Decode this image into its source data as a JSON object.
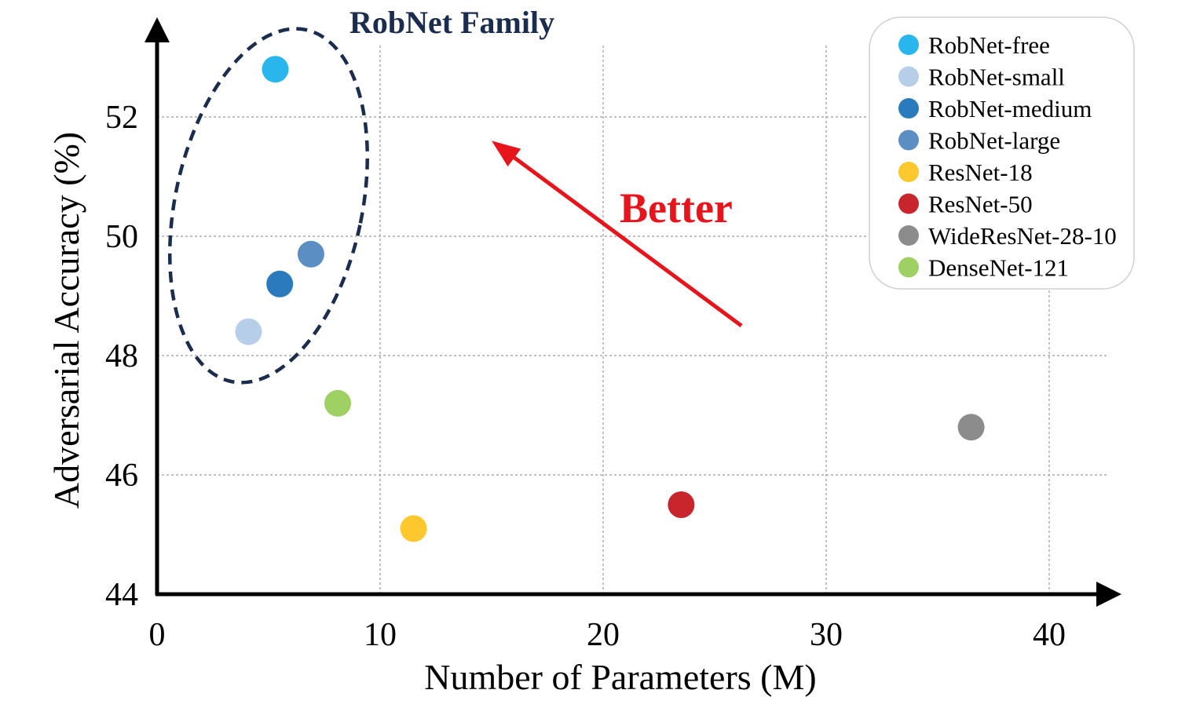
{
  "chart_data": {
    "type": "scatter",
    "xlabel": "Number of Parameters (M)",
    "ylabel": "Adversarial Accuracy (%)",
    "xlim": [
      0,
      43
    ],
    "ylim": [
      44,
      53.5
    ],
    "xticks": [
      0,
      10,
      20,
      30,
      40
    ],
    "yticks": [
      44,
      46,
      48,
      50,
      52
    ],
    "grid": true,
    "legend_position": "top-right",
    "series": [
      {
        "name": "RobNet-free",
        "color": "#29B6EC",
        "x": 5.3,
        "y": 52.8
      },
      {
        "name": "RobNet-small",
        "color": "#B7CEE8",
        "x": 4.1,
        "y": 48.4
      },
      {
        "name": "RobNet-medium",
        "color": "#2A7BBE",
        "x": 5.5,
        "y": 49.2
      },
      {
        "name": "RobNet-large",
        "color": "#5B8EC2",
        "x": 6.9,
        "y": 49.7
      },
      {
        "name": "ResNet-18",
        "color": "#FDC72E",
        "x": 11.5,
        "y": 45.1
      },
      {
        "name": "ResNet-50",
        "color": "#C9252C",
        "x": 23.5,
        "y": 45.5
      },
      {
        "name": "WideResNet-28-10",
        "color": "#8C8C8C",
        "x": 36.5,
        "y": 46.8
      },
      {
        "name": "DenseNet-121",
        "color": "#9ED064",
        "x": 8.1,
        "y": 47.2
      }
    ],
    "annotations": {
      "family_label": "RobNet Family",
      "family_color": "#1B2D4F",
      "arrow_label": "Better",
      "arrow_color": "#E8141B",
      "arrow_from": {
        "x": 26.2,
        "y": 48.5
      },
      "arrow_to": {
        "x": 15.0,
        "y": 51.6
      }
    }
  }
}
